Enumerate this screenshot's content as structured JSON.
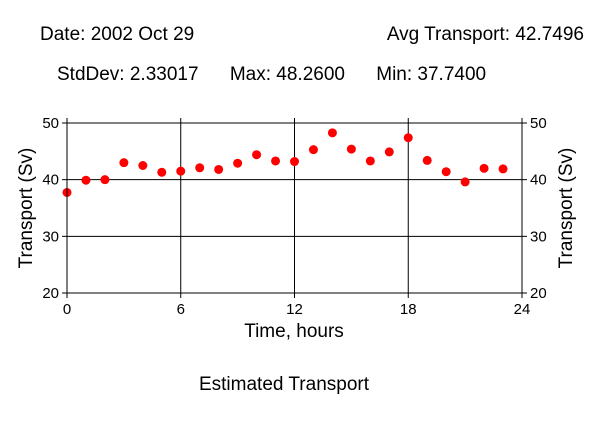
{
  "header": {
    "date_label": "Date: 2002 Oct 29",
    "avg_label": "Avg Transport: 42.7496",
    "stddev_label": "StdDev: 2.33017",
    "max_label": "Max: 48.2600",
    "min_label": "Min: 37.7400"
  },
  "chart_data": {
    "type": "scatter",
    "title": "Estimated Transport",
    "xlabel": "Time, hours",
    "ylabel": "Transport (Sv)",
    "ylabel_right": "Transport (Sv)",
    "xlim": [
      0,
      24
    ],
    "ylim": [
      20,
      50
    ],
    "xticks": [
      0,
      6,
      12,
      18,
      24
    ],
    "yticks": [
      20,
      30,
      40,
      50
    ],
    "grid": true,
    "marker_color": "#ff0000",
    "series": [
      {
        "x": [
          0,
          1,
          2,
          3,
          4,
          5,
          6,
          7,
          8,
          9,
          10,
          11,
          12,
          13,
          14,
          15,
          16,
          17,
          18,
          19,
          20,
          21,
          22,
          23
        ],
        "y": [
          37.74,
          39.9,
          40.0,
          43.0,
          42.5,
          41.3,
          41.5,
          42.1,
          41.8,
          42.9,
          44.4,
          43.3,
          43.2,
          45.3,
          48.26,
          45.4,
          43.3,
          44.9,
          47.4,
          43.4,
          41.4,
          39.6,
          42.0,
          41.9
        ]
      }
    ]
  }
}
